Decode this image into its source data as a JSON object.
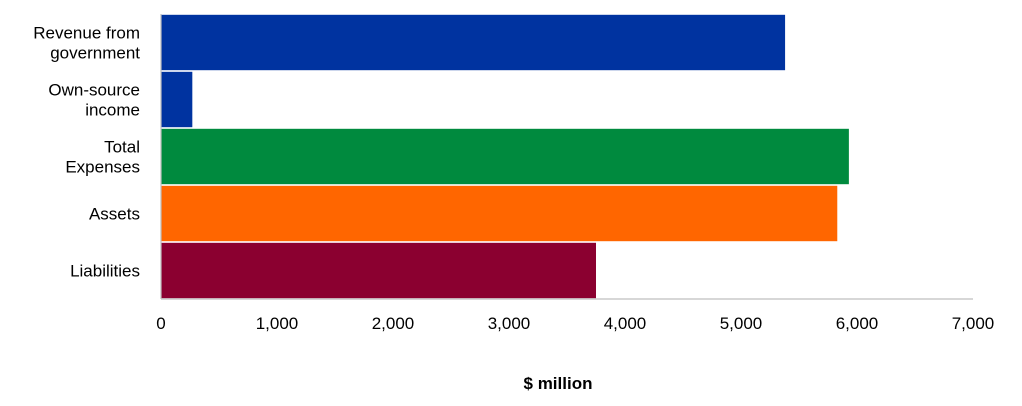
{
  "chart_data": {
    "type": "bar",
    "orientation": "horizontal",
    "categories": [
      [
        "Revenue from",
        "government"
      ],
      [
        "Own-source",
        "income"
      ],
      [
        "Total",
        "Expenses"
      ],
      [
        "Assets"
      ],
      [
        "Liabilities"
      ]
    ],
    "values": [
      5380,
      270,
      5930,
      5830,
      3750
    ],
    "colors": [
      "#0033a0",
      "#0033a0",
      "#008a3e",
      "#ff6600",
      "#8b0030"
    ],
    "xlabel": "$ million",
    "ylabel": "",
    "title": "",
    "xlim": [
      0,
      7000
    ],
    "xticks": [
      0,
      1000,
      2000,
      3000,
      4000,
      5000,
      6000,
      7000
    ],
    "xtick_labels": [
      "0",
      "1,000",
      "2,000",
      "3,000",
      "4,000",
      "5,000",
      "6,000",
      "7,000"
    ],
    "grid": false,
    "legend": "none"
  }
}
